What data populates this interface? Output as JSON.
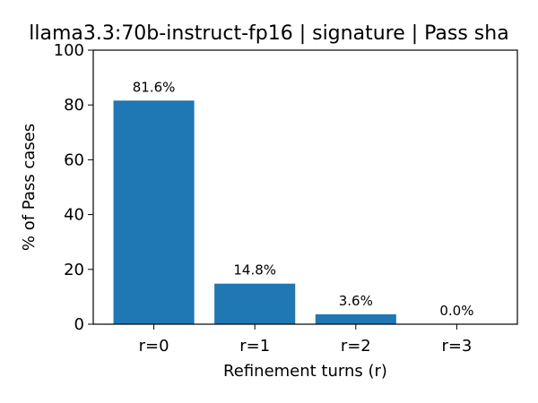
{
  "chart_data": {
    "type": "bar",
    "title": "llama3.3:70b-instruct-fp16 | signature | Pass sha",
    "xlabel": "Refinement turns (r)",
    "ylabel": "% of Pass cases",
    "categories": [
      "r=0",
      "r=1",
      "r=2",
      "r=3"
    ],
    "values": [
      81.6,
      14.8,
      3.6,
      0.0
    ],
    "data_labels": [
      "81.6%",
      "14.8%",
      "3.6%",
      "0.0%"
    ],
    "ylim": [
      0,
      100
    ],
    "yticks": [
      "0",
      "20",
      "40",
      "60",
      "80",
      "100"
    ],
    "grid": false,
    "legend": "none",
    "colors": {
      "bar": "#1f77b4",
      "axis": "#000000"
    }
  }
}
